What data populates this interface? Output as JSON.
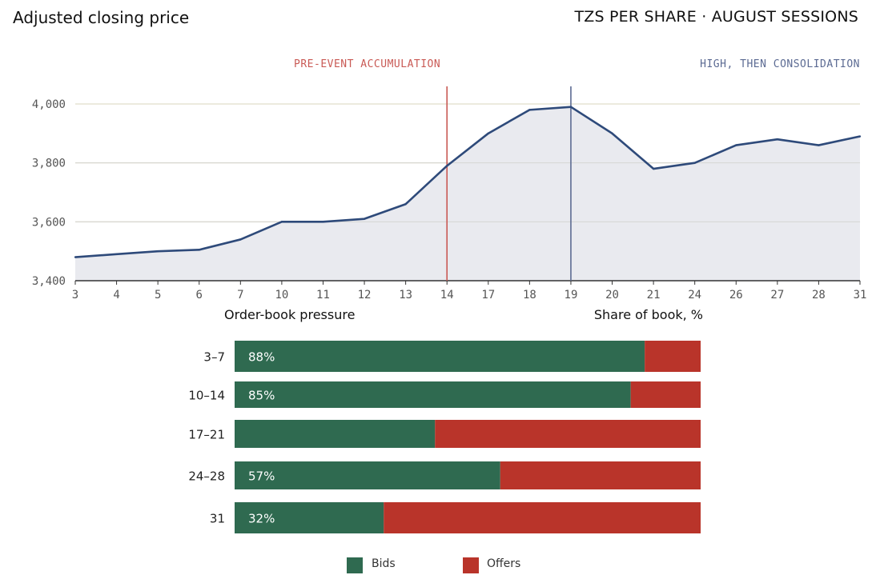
{
  "header": {
    "title": "Adjusted closing price",
    "subtitle": "TZS PER SHARE · AUGUST SESSIONS"
  },
  "colors": {
    "line": "#2e4a7a",
    "area": "#e9eaef",
    "event_pre": "#c95a55",
    "event_high": "#5c6b93",
    "bids": "#2f6a50",
    "offers": "#b9342a"
  },
  "chart_data": [
    {
      "type": "line",
      "x": [
        "3",
        "4",
        "5",
        "6",
        "7",
        "10",
        "11",
        "12",
        "13",
        "14",
        "17",
        "18",
        "19",
        "20",
        "21",
        "24",
        "26",
        "27",
        "28",
        "31"
      ],
      "values": [
        3480,
        3490,
        3500,
        3505,
        3540,
        3600,
        3600,
        3610,
        3660,
        3790,
        3900,
        3980,
        3990,
        3900,
        3780,
        3800,
        3860,
        3880,
        3860,
        3890
      ],
      "ylim": [
        3400,
        4000
      ],
      "yticks": [
        "3,400",
        "3,600",
        "3,800",
        "4,000"
      ],
      "ytick_values": [
        3400,
        3600,
        3800,
        4000
      ],
      "annotations": [
        {
          "x": "14",
          "label": "PRE-EVENT ACCUMULATION"
        },
        {
          "x": "19",
          "label": "HIGH, THEN CONSOLIDATION"
        }
      ],
      "grid": true
    },
    {
      "type": "bar",
      "orientation": "horizontal",
      "stacked": true,
      "title": "Order-book pressure",
      "xlabel": "Share of book, %",
      "categories": [
        "3–7",
        "10–14",
        "17–21",
        "24–28",
        "31"
      ],
      "series": [
        {
          "name": "Bids",
          "values": [
            88,
            85,
            43,
            57,
            32
          ]
        },
        {
          "name": "Offers",
          "values": [
            12,
            15,
            57,
            43,
            68
          ]
        }
      ],
      "value_labels": [
        "88%",
        "85%",
        "",
        "57%",
        "32%"
      ],
      "legend": "bottom"
    }
  ]
}
